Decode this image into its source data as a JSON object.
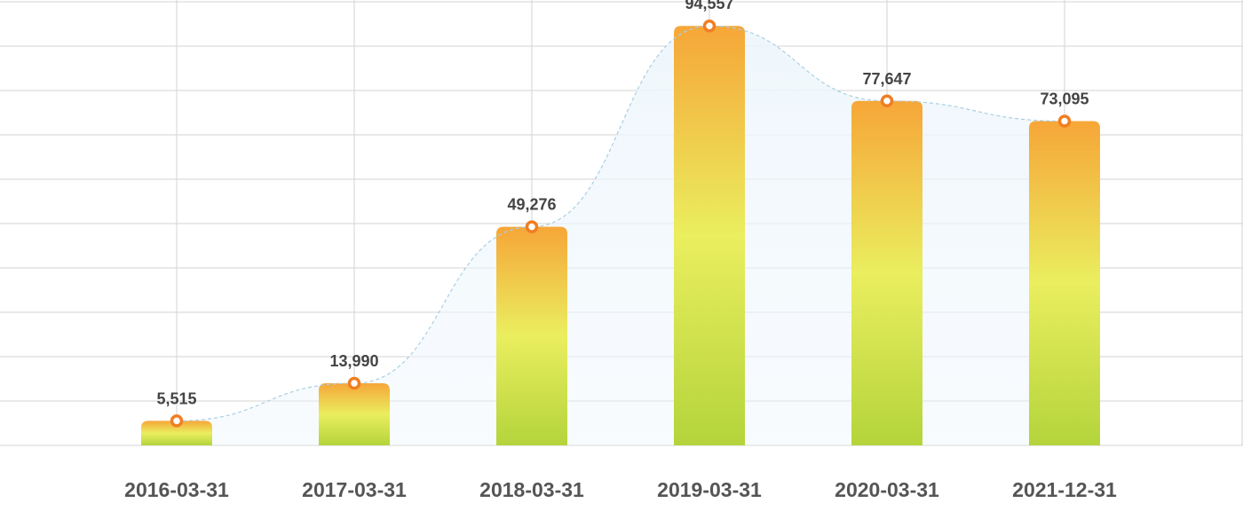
{
  "chart_data": {
    "type": "bar",
    "title": "",
    "xlabel": "",
    "ylabel": "",
    "categories": [
      "2016-03-31",
      "2017-03-31",
      "2018-03-31",
      "2019-03-31",
      "2020-03-31",
      "2021-12-31"
    ],
    "values": [
      5515,
      13990,
      49276,
      94557,
      77647,
      73095
    ],
    "value_labels": [
      "5,515",
      "13,990",
      "49,276",
      "94,557",
      "77,647",
      "73,095"
    ],
    "ylim": [
      0,
      100000
    ],
    "grid": true,
    "overlay": "smoothed dashed trend line with light-blue area fill through bar tops",
    "colors": {
      "bar_top": "#f6a638",
      "bar_middle": "#eaee5f",
      "bar_bottom": "#b4d43c",
      "marker": "#f07e22",
      "trend_line": "#a9cfe3",
      "trend_fill": "#eef6fc"
    }
  }
}
